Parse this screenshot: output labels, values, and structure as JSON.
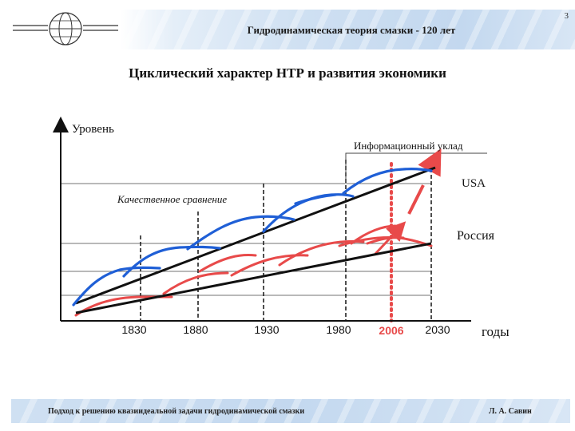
{
  "header": {
    "slide_number": "3",
    "title": "Гидродинамическая теория смазки - 120 лет"
  },
  "main_title": "Циклический характер НТР и развития экономики",
  "chart_data": {
    "type": "line",
    "ylabel": "Уровень",
    "xlabel": "годы",
    "x_ticks": [
      "1830",
      "1880",
      "1930",
      "1980",
      "2006",
      "2030"
    ],
    "highlight_tick": "2006",
    "annotations": {
      "information_mode": "Информационный уклад",
      "usa": "USA",
      "russia": "Россия",
      "qualitative": "Качественное сравнение"
    },
    "series": [
      {
        "name": "USA",
        "color": "#1f5fd6"
      },
      {
        "name": "Россия",
        "color": "#e84a4a"
      }
    ],
    "colors": {
      "trend": "#111111",
      "usa": "#1f5fd6",
      "russia": "#e84a4a"
    }
  },
  "footer": {
    "left": "Подход к решению квазиидеальной задачи гидродинамической смазки",
    "right": "Л. А. Савин"
  }
}
